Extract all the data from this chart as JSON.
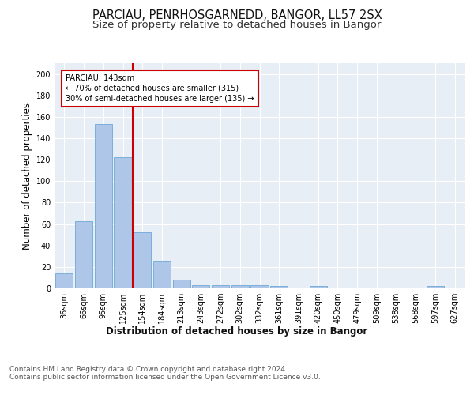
{
  "title1": "PARCIAU, PENRHOSGARNEDD, BANGOR, LL57 2SX",
  "title2": "Size of property relative to detached houses in Bangor",
  "xlabel": "Distribution of detached houses by size in Bangor",
  "ylabel": "Number of detached properties",
  "categories": [
    "36sqm",
    "66sqm",
    "95sqm",
    "125sqm",
    "154sqm",
    "184sqm",
    "213sqm",
    "243sqm",
    "272sqm",
    "302sqm",
    "332sqm",
    "361sqm",
    "391sqm",
    "420sqm",
    "450sqm",
    "479sqm",
    "509sqm",
    "538sqm",
    "568sqm",
    "597sqm",
    "627sqm"
  ],
  "values": [
    14,
    63,
    153,
    122,
    52,
    25,
    8,
    3,
    3,
    3,
    3,
    2,
    0,
    2,
    0,
    0,
    0,
    0,
    0,
    2,
    0
  ],
  "bar_color": "#aec6e8",
  "bar_edge_color": "#5a9fd4",
  "annotation_text": "PARCIAU: 143sqm\n← 70% of detached houses are smaller (315)\n30% of semi-detached houses are larger (135) →",
  "annotation_box_color": "#ffffff",
  "annotation_edge_color": "#cc0000",
  "red_line_color": "#cc0000",
  "ylim": [
    0,
    210
  ],
  "yticks": [
    0,
    20,
    40,
    60,
    80,
    100,
    120,
    140,
    160,
    180,
    200
  ],
  "background_color": "#e8eef5",
  "footer_text": "Contains HM Land Registry data © Crown copyright and database right 2024.\nContains public sector information licensed under the Open Government Licence v3.0.",
  "title1_fontsize": 10.5,
  "title2_fontsize": 9.5,
  "xlabel_fontsize": 8.5,
  "ylabel_fontsize": 8.5,
  "tick_fontsize": 7,
  "footer_fontsize": 6.5
}
